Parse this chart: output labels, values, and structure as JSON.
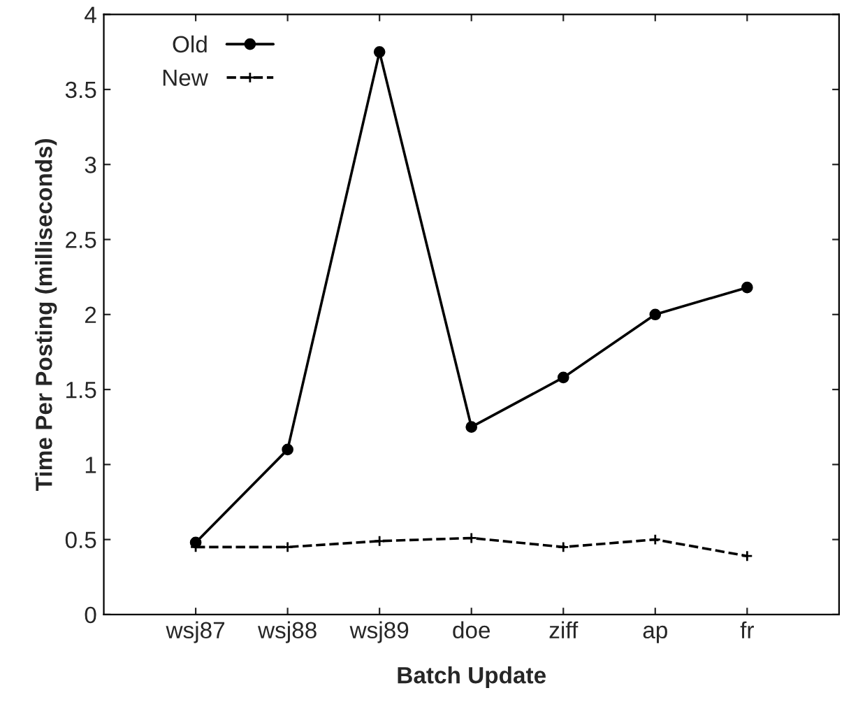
{
  "chart_data": {
    "type": "line",
    "xlabel": "Batch Update",
    "ylabel": "Time Per Posting (milliseconds)",
    "categories": [
      "wsj87",
      "wsj88",
      "wsj89",
      "doe",
      "ziff",
      "ap",
      "fr"
    ],
    "series": [
      {
        "name": "Old",
        "color": "#000000",
        "marker": "circle",
        "line_style": "solid",
        "values": [
          0.48,
          1.1,
          3.75,
          1.25,
          1.58,
          2.0,
          2.18
        ]
      },
      {
        "name": "New",
        "color": "#000000",
        "marker": "cross",
        "line_style": "dashed",
        "values": [
          0.45,
          0.45,
          0.49,
          0.51,
          0.45,
          0.5,
          0.39
        ]
      }
    ],
    "ylim": [
      0,
      4
    ],
    "yticks": [
      0,
      0.5,
      1,
      1.5,
      2,
      2.5,
      3,
      3.5,
      4
    ],
    "grid": false,
    "legend": "top left"
  }
}
